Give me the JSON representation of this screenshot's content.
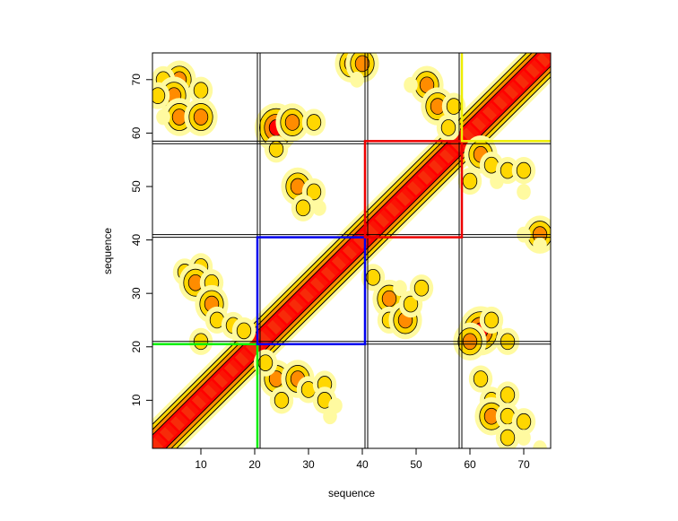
{
  "chart_data": {
    "type": "heatmap",
    "title": "",
    "xlabel": "sequence",
    "ylabel": "sequence",
    "xlim": [
      1,
      75
    ],
    "ylim": [
      1,
      75
    ],
    "x_ticks": [
      10,
      20,
      30,
      40,
      50,
      60,
      70
    ],
    "y_ticks": [
      10,
      20,
      30,
      40,
      50,
      60,
      70
    ],
    "grid": false,
    "legend": "none",
    "colors": {
      "high": "#ff0000",
      "mid_high": "#f04e10",
      "mid": "#ff8c00",
      "low": "#ffd700",
      "faint": "#fffaa0",
      "contour": "#000000",
      "box_green": "#00ee00",
      "box_blue": "#0000ee",
      "box_red": "#ee0000",
      "box_yellow": "#eeee00"
    },
    "domain_boundaries": [
      {
        "from": 20.5,
        "to": 21.0
      },
      {
        "from": 40.5,
        "to": 41.0
      },
      {
        "from": 58.0,
        "to": 58.5
      }
    ],
    "boxes": [
      {
        "color": "green",
        "start": 1,
        "end": 20
      },
      {
        "color": "blue",
        "start": 21,
        "end": 40
      },
      {
        "color": "red",
        "start": 41,
        "end": 58
      },
      {
        "color": "yellow",
        "start": 59,
        "end": 75
      }
    ],
    "diagonal_band": {
      "from": 1,
      "to": 75,
      "core_halfwidth": 2.5,
      "outer_halfwidth": 4.5
    },
    "contacts": [
      {
        "x": 6,
        "y": 70,
        "level": 3
      },
      {
        "x": 3,
        "y": 70,
        "level": 2
      },
      {
        "x": 5,
        "y": 67,
        "level": 3
      },
      {
        "x": 2,
        "y": 67,
        "level": 2
      },
      {
        "x": 10,
        "y": 68,
        "level": 2
      },
      {
        "x": 6,
        "y": 63,
        "level": 3
      },
      {
        "x": 10,
        "y": 63,
        "level": 3
      },
      {
        "x": 3,
        "y": 63,
        "level": 1
      },
      {
        "x": 24,
        "y": 61,
        "level": 4
      },
      {
        "x": 27,
        "y": 62,
        "level": 3
      },
      {
        "x": 31,
        "y": 62,
        "level": 2
      },
      {
        "x": 24,
        "y": 57,
        "level": 2
      },
      {
        "x": 28,
        "y": 50,
        "level": 3
      },
      {
        "x": 31,
        "y": 49,
        "level": 2
      },
      {
        "x": 29,
        "y": 46,
        "level": 2
      },
      {
        "x": 32,
        "y": 46,
        "level": 1
      },
      {
        "x": 38,
        "y": 73,
        "level": 3
      },
      {
        "x": 40,
        "y": 73,
        "level": 3
      },
      {
        "x": 39,
        "y": 70,
        "level": 1
      },
      {
        "x": 52,
        "y": 69,
        "level": 3
      },
      {
        "x": 54,
        "y": 65,
        "level": 3
      },
      {
        "x": 57,
        "y": 65,
        "level": 2
      },
      {
        "x": 56,
        "y": 61,
        "level": 2
      },
      {
        "x": 49,
        "y": 69,
        "level": 1
      },
      {
        "x": 62,
        "y": 56,
        "level": 3
      },
      {
        "x": 64,
        "y": 54,
        "level": 2
      },
      {
        "x": 67,
        "y": 53,
        "level": 2
      },
      {
        "x": 70,
        "y": 53,
        "level": 2
      },
      {
        "x": 60,
        "y": 51,
        "level": 2
      },
      {
        "x": 65,
        "y": 51,
        "level": 1
      },
      {
        "x": 70,
        "y": 49,
        "level": 1
      },
      {
        "x": 73,
        "y": 41,
        "level": 3
      },
      {
        "x": 70,
        "y": 41,
        "level": 1
      },
      {
        "x": 73,
        "y": 39,
        "level": 1
      },
      {
        "x": 7,
        "y": 34,
        "level": 2
      },
      {
        "x": 10,
        "y": 35,
        "level": 2
      },
      {
        "x": 9,
        "y": 32,
        "level": 3
      },
      {
        "x": 12,
        "y": 32,
        "level": 2
      },
      {
        "x": 12,
        "y": 28,
        "level": 3
      },
      {
        "x": 13,
        "y": 25,
        "level": 2
      },
      {
        "x": 16,
        "y": 24,
        "level": 2
      },
      {
        "x": 18,
        "y": 23,
        "level": 2
      },
      {
        "x": 10,
        "y": 21,
        "level": 2
      },
      {
        "x": 24,
        "y": 14,
        "level": 3
      },
      {
        "x": 28,
        "y": 14,
        "level": 3
      },
      {
        "x": 30,
        "y": 12,
        "level": 2
      },
      {
        "x": 33,
        "y": 13,
        "level": 2
      },
      {
        "x": 25,
        "y": 10,
        "level": 2
      },
      {
        "x": 33,
        "y": 10,
        "level": 2
      },
      {
        "x": 35,
        "y": 9,
        "level": 1
      },
      {
        "x": 22,
        "y": 17,
        "level": 2
      },
      {
        "x": 34,
        "y": 7,
        "level": 1
      },
      {
        "x": 45,
        "y": 29,
        "level": 3
      },
      {
        "x": 45,
        "y": 25,
        "level": 2
      },
      {
        "x": 48,
        "y": 25,
        "level": 3
      },
      {
        "x": 49,
        "y": 28,
        "level": 2
      },
      {
        "x": 51,
        "y": 31,
        "level": 2
      },
      {
        "x": 42,
        "y": 33,
        "level": 2
      },
      {
        "x": 47,
        "y": 31,
        "level": 1
      },
      {
        "x": 62,
        "y": 23,
        "level": 4
      },
      {
        "x": 60,
        "y": 21,
        "level": 3
      },
      {
        "x": 64,
        "y": 25,
        "level": 2
      },
      {
        "x": 67,
        "y": 21,
        "level": 2
      },
      {
        "x": 62,
        "y": 14,
        "level": 2
      },
      {
        "x": 64,
        "y": 10,
        "level": 2
      },
      {
        "x": 67,
        "y": 11,
        "level": 2
      },
      {
        "x": 64,
        "y": 7,
        "level": 3
      },
      {
        "x": 67,
        "y": 7,
        "level": 2
      },
      {
        "x": 70,
        "y": 6,
        "level": 2
      },
      {
        "x": 67,
        "y": 3,
        "level": 2
      },
      {
        "x": 70,
        "y": 3,
        "level": 1
      },
      {
        "x": 73,
        "y": 1,
        "level": 1
      }
    ]
  }
}
